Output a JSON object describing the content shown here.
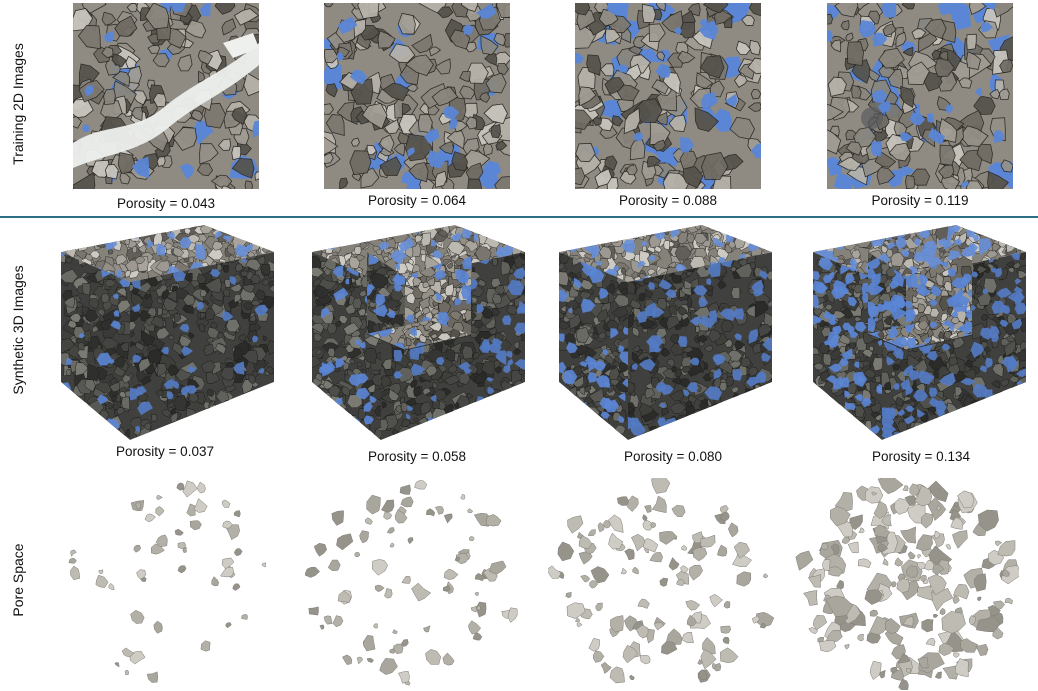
{
  "rows": {
    "training_label": "Training 2D Images",
    "synthetic_label": "Synthetic 3D Images",
    "pore_label": "Pore Space"
  },
  "training": [
    {
      "caption": "Porosity = 0.043",
      "porosity": 0.043
    },
    {
      "caption": "Porosity = 0.064",
      "porosity": 0.064
    },
    {
      "caption": "Porosity = 0.088",
      "porosity": 0.088
    },
    {
      "caption": "Porosity = 0.119",
      "porosity": 0.119
    }
  ],
  "synthetic": [
    {
      "caption": "Porosity = 0.037",
      "porosity": 0.037,
      "cutaway": false
    },
    {
      "caption": "Porosity = 0.058",
      "porosity": 0.058,
      "cutaway": true
    },
    {
      "caption": "Porosity = 0.080",
      "porosity": 0.08,
      "cutaway": false
    },
    {
      "caption": "Porosity = 0.134",
      "porosity": 0.134,
      "cutaway": true
    }
  ],
  "pore": [
    {
      "porosity": 0.037
    },
    {
      "porosity": 0.058
    },
    {
      "porosity": 0.08
    },
    {
      "porosity": 0.134
    }
  ],
  "colors": {
    "pore_blue": "#5b86d6",
    "grain": "#8f8b82",
    "rock_dark": "#3e3f3d",
    "pore_surface": "#b9b6ae",
    "divider": "#2f6f86"
  }
}
